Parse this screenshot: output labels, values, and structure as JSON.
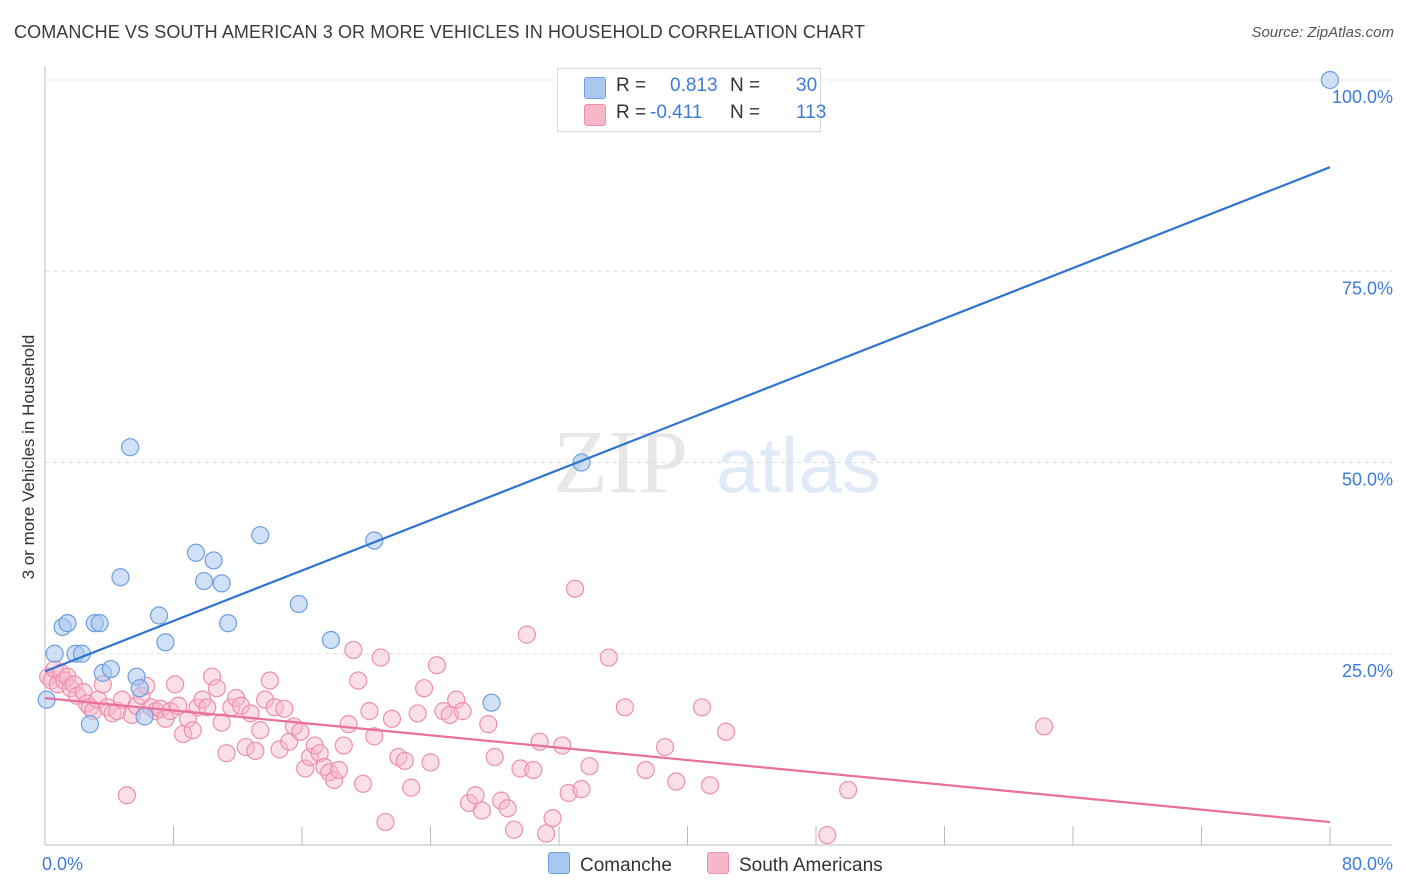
{
  "title": "COMANCHE VS SOUTH AMERICAN 3 OR MORE VEHICLES IN HOUSEHOLD CORRELATION CHART",
  "source": "Source: ZipAtlas.com",
  "watermark": {
    "zip": "ZIP",
    "atlas": "atlas"
  },
  "colors": {
    "blue_fill": "#a9c8f0",
    "blue_stroke": "#6d9ee0",
    "blue_line": "#2f73d0",
    "pink_fill": "#f6b8c9",
    "pink_stroke": "#ee8fab",
    "pink_line": "#e8709a",
    "axis_label": "#3d7bd9",
    "grid": "#dddddd"
  },
  "legend": {
    "rows": [
      {
        "r_label": "R =",
        "r_value": "0.813",
        "n_label": "N =",
        "n_value": "30"
      },
      {
        "r_label": "R =",
        "r_value": "-0.411",
        "n_label": "N =",
        "n_value": "113"
      }
    ]
  },
  "bottom_legend": {
    "series_a": "Comanche",
    "series_b": "South Americans"
  },
  "chart_data": {
    "type": "scatter",
    "title": "COMANCHE VS SOUTH AMERICAN 3 OR MORE VEHICLES IN HOUSEHOLD CORRELATION CHART",
    "xlabel": "",
    "ylabel": "3 or more Vehicles in Household",
    "xlim": [
      0,
      80
    ],
    "ylim": [
      0,
      100
    ],
    "x_tick_labels": [
      "0.0%",
      "80.0%"
    ],
    "y_tick_labels": [
      "25.0%",
      "50.0%",
      "75.0%",
      "100.0%"
    ],
    "y_ticks": [
      25,
      50,
      75,
      100
    ],
    "grid": true,
    "legend_position": "top-center",
    "series": [
      {
        "name": "Comanche",
        "color": "#a9c8f0",
        "r": 0.813,
        "n": 30,
        "trend": {
          "x": [
            0,
            80
          ],
          "y": [
            22.7,
            88.6
          ]
        },
        "points": [
          [
            0.1,
            19
          ],
          [
            0.6,
            25
          ],
          [
            1.1,
            28.5
          ],
          [
            1.4,
            29
          ],
          [
            1.9,
            25
          ],
          [
            2.3,
            25
          ],
          [
            3.1,
            29
          ],
          [
            3.4,
            29
          ],
          [
            3.6,
            22.5
          ],
          [
            4.1,
            23
          ],
          [
            4.7,
            35
          ],
          [
            5.3,
            52
          ],
          [
            5.7,
            22
          ],
          [
            5.9,
            20.5
          ],
          [
            6.2,
            16.8
          ],
          [
            7.1,
            30
          ],
          [
            7.5,
            26.5
          ],
          [
            9.4,
            38.2
          ],
          [
            9.9,
            34.5
          ],
          [
            10.5,
            37.2
          ],
          [
            11.0,
            34.2
          ],
          [
            11.4,
            29
          ],
          [
            13.4,
            40.5
          ],
          [
            15.8,
            31.5
          ],
          [
            17.8,
            26.8
          ],
          [
            20.5,
            39.8
          ],
          [
            27.8,
            18.6
          ],
          [
            33.4,
            50
          ],
          [
            80,
            100
          ],
          [
            2.8,
            15.8
          ]
        ]
      },
      {
        "name": "South Americans",
        "color": "#f6b8c9",
        "r": -0.411,
        "n": 113,
        "trend": {
          "x": [
            0,
            80
          ],
          "y": [
            19.2,
            3.0
          ]
        },
        "points": [
          [
            0.2,
            22
          ],
          [
            0.4,
            21.5
          ],
          [
            0.6,
            23
          ],
          [
            0.8,
            21
          ],
          [
            1.0,
            22.5
          ],
          [
            1.2,
            21.5
          ],
          [
            1.4,
            22
          ],
          [
            1.6,
            20.5
          ],
          [
            1.8,
            21
          ],
          [
            2.0,
            19.5
          ],
          [
            2.4,
            20
          ],
          [
            2.6,
            18.5
          ],
          [
            2.8,
            18
          ],
          [
            3.0,
            17.5
          ],
          [
            3.3,
            19
          ],
          [
            3.6,
            21
          ],
          [
            3.9,
            18
          ],
          [
            4.2,
            17.2
          ],
          [
            4.5,
            17.5
          ],
          [
            4.8,
            19
          ],
          [
            5.1,
            6.5
          ],
          [
            5.4,
            17
          ],
          [
            5.7,
            18.2
          ],
          [
            6.0,
            19.5
          ],
          [
            6.3,
            20.8
          ],
          [
            6.6,
            18
          ],
          [
            6.9,
            17.5
          ],
          [
            7.2,
            17.8
          ],
          [
            7.5,
            16.5
          ],
          [
            7.8,
            17.5
          ],
          [
            8.1,
            21
          ],
          [
            8.3,
            18.2
          ],
          [
            8.6,
            14.5
          ],
          [
            8.9,
            16.5
          ],
          [
            9.2,
            15
          ],
          [
            9.5,
            18
          ],
          [
            9.8,
            19
          ],
          [
            10.1,
            18
          ],
          [
            10.4,
            22
          ],
          [
            10.7,
            20.5
          ],
          [
            11.0,
            16
          ],
          [
            11.3,
            12
          ],
          [
            11.6,
            18
          ],
          [
            11.9,
            19.2
          ],
          [
            12.2,
            18.2
          ],
          [
            12.5,
            12.8
          ],
          [
            12.8,
            17.2
          ],
          [
            13.1,
            12.3
          ],
          [
            13.4,
            15
          ],
          [
            13.7,
            19
          ],
          [
            14.0,
            21.5
          ],
          [
            14.3,
            18
          ],
          [
            14.6,
            12.5
          ],
          [
            14.9,
            17.8
          ],
          [
            15.2,
            13.5
          ],
          [
            15.5,
            15.5
          ],
          [
            15.9,
            14.8
          ],
          [
            16.2,
            10
          ],
          [
            16.5,
            11.5
          ],
          [
            16.8,
            13
          ],
          [
            17.1,
            12
          ],
          [
            17.4,
            10.2
          ],
          [
            17.7,
            9.5
          ],
          [
            18.0,
            8.5
          ],
          [
            18.3,
            9.8
          ],
          [
            18.6,
            13
          ],
          [
            18.9,
            15.8
          ],
          [
            19.2,
            25.5
          ],
          [
            19.5,
            21.5
          ],
          [
            19.8,
            8
          ],
          [
            20.2,
            17.5
          ],
          [
            20.5,
            14.2
          ],
          [
            20.9,
            24.5
          ],
          [
            21.2,
            3
          ],
          [
            21.6,
            16.5
          ],
          [
            22.0,
            11.5
          ],
          [
            22.4,
            11
          ],
          [
            22.8,
            7.5
          ],
          [
            23.2,
            17.2
          ],
          [
            23.6,
            20.5
          ],
          [
            24.0,
            10.8
          ],
          [
            24.4,
            23.5
          ],
          [
            24.8,
            17.5
          ],
          [
            25.2,
            17
          ],
          [
            25.6,
            19
          ],
          [
            26.0,
            17.5
          ],
          [
            26.4,
            5.5
          ],
          [
            26.8,
            6.5
          ],
          [
            27.2,
            4.5
          ],
          [
            27.6,
            15.8
          ],
          [
            28.0,
            11.5
          ],
          [
            28.4,
            5.8
          ],
          [
            28.8,
            4.8
          ],
          [
            29.2,
            2
          ],
          [
            29.6,
            10
          ],
          [
            30.0,
            27.5
          ],
          [
            30.4,
            9.8
          ],
          [
            30.8,
            13.5
          ],
          [
            31.2,
            1.5
          ],
          [
            31.6,
            3.5
          ],
          [
            32.2,
            13
          ],
          [
            32.6,
            6.8
          ],
          [
            33.0,
            33.5
          ],
          [
            33.4,
            7.3
          ],
          [
            33.9,
            10.3
          ],
          [
            35.1,
            24.5
          ],
          [
            36.1,
            18
          ],
          [
            37.4,
            9.8
          ],
          [
            38.6,
            12.8
          ],
          [
            39.3,
            8.3
          ],
          [
            40.9,
            18
          ],
          [
            41.4,
            7.8
          ],
          [
            42.4,
            14.8
          ],
          [
            48.7,
            1.3
          ],
          [
            50.0,
            7.2
          ],
          [
            62.2,
            15.5
          ]
        ]
      }
    ]
  }
}
